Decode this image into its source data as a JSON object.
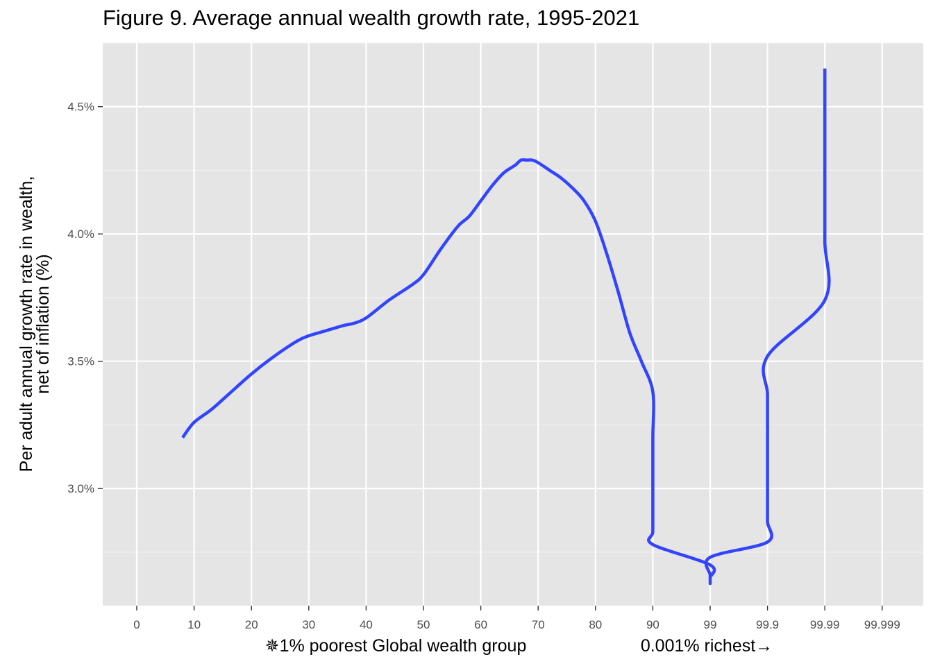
{
  "chart_data": {
    "type": "line",
    "title": "Figure 9. Average annual wealth growth rate, 1995-2021",
    "xlabel_left": "✵1% poorest Global wealth group",
    "xlabel_right": "0.001% richest→",
    "ylabel_line1": "Per adult annual growth rate in wealth,",
    "ylabel_line2": "net of inflation (%)",
    "x_tick_labels": [
      "0",
      "10",
      "20",
      "30",
      "40",
      "50",
      "60",
      "70",
      "80",
      "90",
      "99",
      "99.9",
      "99.99",
      "99.999"
    ],
    "y_ticks": [
      3.0,
      3.5,
      4.0,
      4.5
    ],
    "y_tick_labels": [
      "3.0%",
      "3.5%",
      "4.0%",
      "4.5%"
    ],
    "ylim": [
      2.54,
      4.75
    ],
    "grid": true,
    "line_color": "#3344ff",
    "panel_color": "#e5e5e5",
    "series": [
      {
        "x": [
          8,
          10,
          13,
          16,
          20,
          24,
          28,
          30,
          33,
          36,
          38,
          40,
          44,
          48,
          50,
          53,
          56,
          58,
          60,
          62,
          64,
          66,
          67,
          68,
          69,
          70,
          72,
          74,
          76,
          78,
          80,
          82,
          84,
          86,
          88,
          90,
          92,
          94,
          96,
          98,
          99,
          99.3,
          99.5,
          99.62,
          99.68,
          99.76,
          99.84,
          99.9,
          99.93,
          99.95,
          99.97,
          99.98,
          99.985,
          99.99,
          99.993,
          99.995,
          99.997,
          99.998
        ],
        "y": [
          3.2,
          3.26,
          3.31,
          3.37,
          3.45,
          3.52,
          3.58,
          3.6,
          3.62,
          3.64,
          3.65,
          3.67,
          3.74,
          3.8,
          3.84,
          3.94,
          4.03,
          4.07,
          4.13,
          4.19,
          4.24,
          4.27,
          4.29,
          4.29,
          4.29,
          4.28,
          4.25,
          4.22,
          4.18,
          4.13,
          4.05,
          3.92,
          3.77,
          3.61,
          3.5,
          3.38,
          3.2,
          3.04,
          2.92,
          2.83,
          2.78,
          2.7,
          2.65,
          2.63,
          2.63,
          2.66,
          2.73,
          2.79,
          2.87,
          2.96,
          3.08,
          3.22,
          3.37,
          3.52,
          3.74,
          3.97,
          4.22,
          4.65
        ]
      }
    ]
  }
}
